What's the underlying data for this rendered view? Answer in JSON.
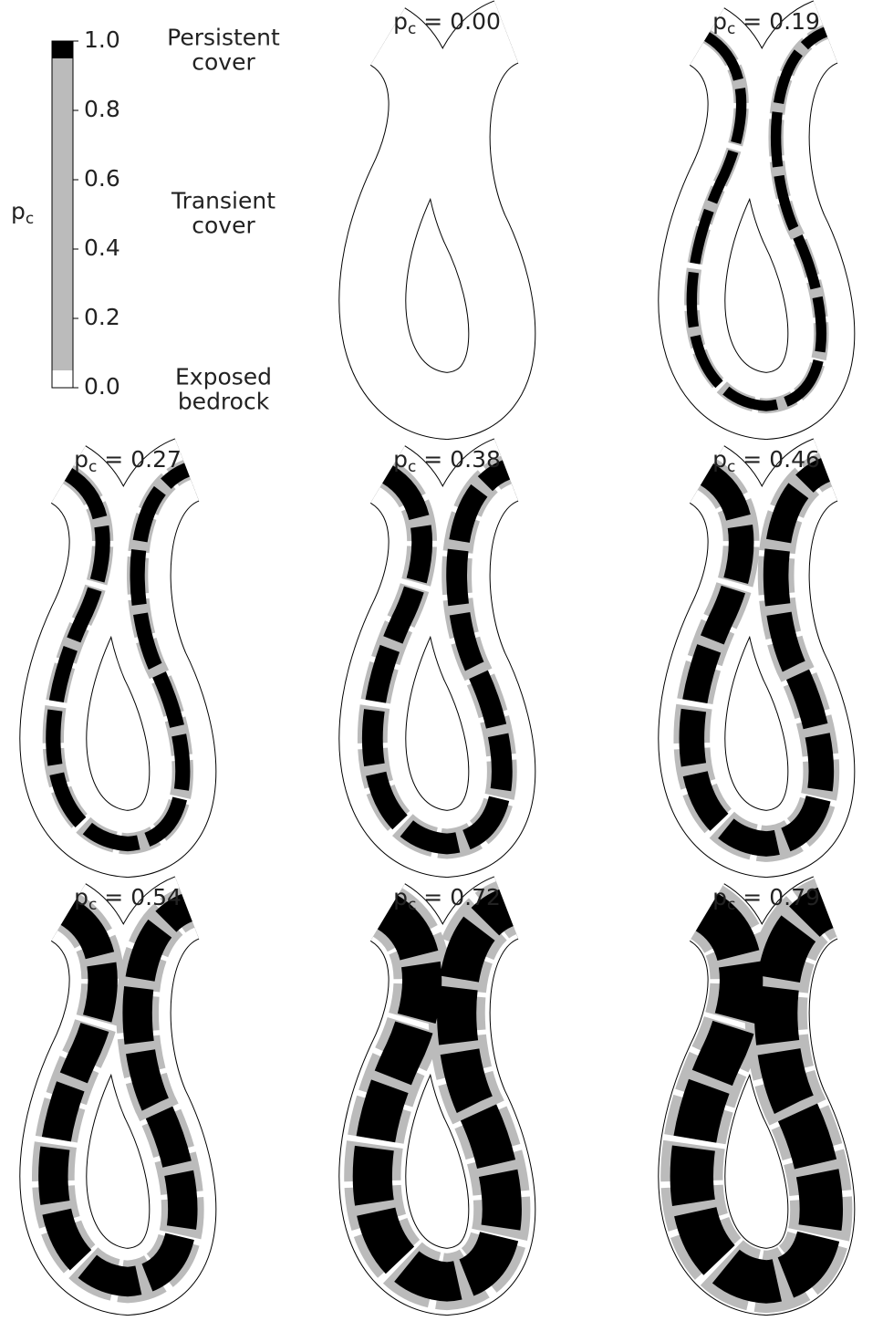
{
  "colorbar": {
    "symbol": "p",
    "subscript": "c",
    "ylim": [
      0,
      1
    ],
    "ticks": [
      {
        "value": 0,
        "label": "0.0"
      },
      {
        "value": 0.2,
        "label": "0.2"
      },
      {
        "value": 0.4,
        "label": "0.4"
      },
      {
        "value": 0.6,
        "label": "0.6"
      },
      {
        "value": 0.8,
        "label": "0.8"
      },
      {
        "value": 1,
        "label": "1.0"
      }
    ],
    "classes": [
      {
        "lines": [
          "Exposed",
          "bedrock"
        ],
        "color": "#ffffff",
        "range": [
          0,
          0.05
        ]
      },
      {
        "lines": [
          "Transient",
          "cover"
        ],
        "color": "#bbbbbb",
        "range": [
          0.05,
          0.95
        ]
      },
      {
        "lines": [
          "Persistent",
          "cover"
        ],
        "color": "#000000",
        "range": [
          0.95,
          1
        ]
      }
    ]
  },
  "panel_title": {
    "symbol": "p",
    "subscript": "c",
    "operator": "="
  },
  "panels": [
    {
      "label": "0.00",
      "value": 0.0
    },
    {
      "label": "0.19",
      "value": 0.19
    },
    {
      "label": "0.27",
      "value": 0.27
    },
    {
      "label": "0.38",
      "value": 0.38
    },
    {
      "label": "0.46",
      "value": 0.46
    },
    {
      "label": "0.54",
      "value": 0.54
    },
    {
      "label": "0.72",
      "value": 0.72
    },
    {
      "label": "0.79",
      "value": 0.79
    }
  ]
}
